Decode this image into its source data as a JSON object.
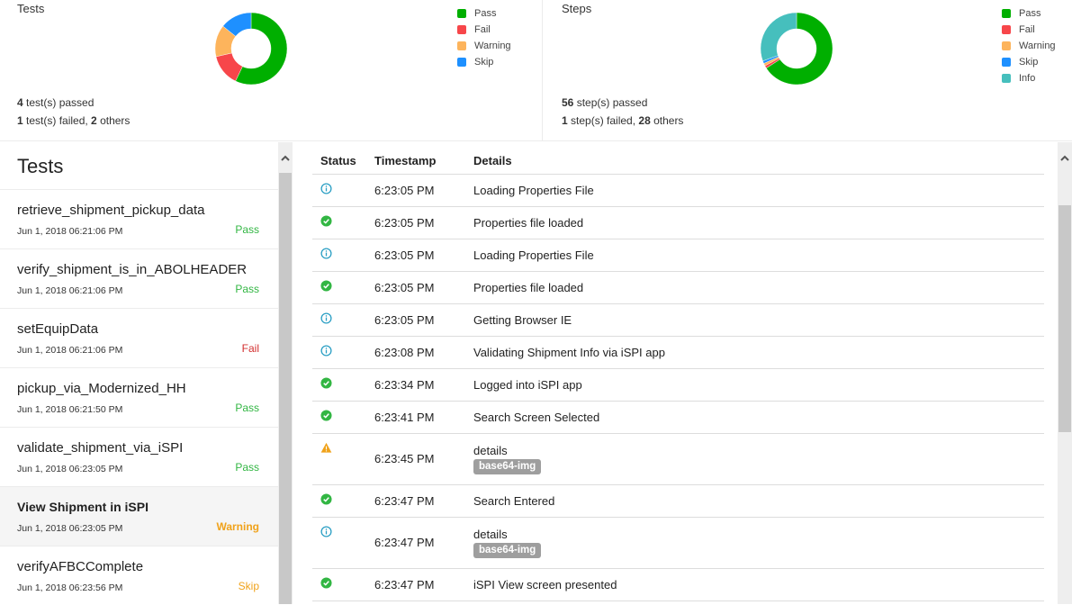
{
  "summary": {
    "tests": {
      "title": "Tests",
      "passed_count": "4",
      "passed_text": " test(s) passed",
      "failed_count": "1",
      "failed_text": " test(s) failed, ",
      "others_count": "2",
      "others_text": " others",
      "legend": [
        {
          "label": "Pass",
          "color": "#00af00"
        },
        {
          "label": "Fail",
          "color": "#f7464a"
        },
        {
          "label": "Warning",
          "color": "#fdb45c"
        },
        {
          "label": "Skip",
          "color": "#1e90ff"
        }
      ]
    },
    "steps": {
      "title": "Steps",
      "passed_count": "56",
      "passed_text": " step(s) passed",
      "failed_count": "1",
      "failed_text": " step(s) failed, ",
      "others_count": "28",
      "others_text": " others",
      "legend": [
        {
          "label": "Pass",
          "color": "#00af00"
        },
        {
          "label": "Fail",
          "color": "#f7464a"
        },
        {
          "label": "Warning",
          "color": "#fdb45c"
        },
        {
          "label": "Skip",
          "color": "#1e90ff"
        },
        {
          "label": "Info",
          "color": "#46bfbd"
        }
      ]
    }
  },
  "chart_data": [
    {
      "type": "pie",
      "title": "Tests",
      "categories": [
        "Pass",
        "Fail",
        "Warning",
        "Skip"
      ],
      "values": [
        4,
        1,
        1,
        1
      ],
      "colors": [
        "#00af00",
        "#f7464a",
        "#fdb45c",
        "#1e90ff"
      ],
      "donut": true,
      "legend_position": "right"
    },
    {
      "type": "pie",
      "title": "Steps",
      "categories": [
        "Pass",
        "Fail",
        "Warning",
        "Skip",
        "Info"
      ],
      "values": [
        56,
        1,
        1,
        1,
        26
      ],
      "colors": [
        "#00af00",
        "#f7464a",
        "#fdb45c",
        "#1e90ff",
        "#46bfbd"
      ],
      "donut": true,
      "legend_position": "right"
    }
  ],
  "test_pane": {
    "title": "Tests",
    "items": [
      {
        "name": "retrieve_shipment_pickup_data",
        "time": "Jun 1, 2018 06:21:06 PM",
        "status": "Pass",
        "status_class": "pass"
      },
      {
        "name": "verify_shipment_is_in_ABOLHEADER",
        "time": "Jun 1, 2018 06:21:06 PM",
        "status": "Pass",
        "status_class": "pass"
      },
      {
        "name": "setEquipData",
        "time": "Jun 1, 2018 06:21:06 PM",
        "status": "Fail",
        "status_class": "fail"
      },
      {
        "name": "pickup_via_Modernized_HH",
        "time": "Jun 1, 2018 06:21:50 PM",
        "status": "Pass",
        "status_class": "pass"
      },
      {
        "name": "validate_shipment_via_iSPI",
        "time": "Jun 1, 2018 06:23:05 PM",
        "status": "Pass",
        "status_class": "pass"
      },
      {
        "name": "View Shipment in iSPI",
        "time": "Jun 1, 2018 06:23:05 PM",
        "status": "Warning",
        "status_class": "warning",
        "active": true
      },
      {
        "name": "verifyAFBCComplete",
        "time": "Jun 1, 2018 06:23:56 PM",
        "status": "Skip",
        "status_class": "skip"
      }
    ]
  },
  "steps_table": {
    "headers": {
      "status": "Status",
      "timestamp": "Timestamp",
      "details": "Details"
    },
    "rows": [
      {
        "status": "info",
        "timestamp": "6:23:05 PM",
        "details": "Loading Properties File"
      },
      {
        "status": "pass",
        "timestamp": "6:23:05 PM",
        "details": "Properties file loaded"
      },
      {
        "status": "info",
        "timestamp": "6:23:05 PM",
        "details": "Loading Properties File"
      },
      {
        "status": "pass",
        "timestamp": "6:23:05 PM",
        "details": "Properties file loaded"
      },
      {
        "status": "info",
        "timestamp": "6:23:05 PM",
        "details": "Getting Browser IE"
      },
      {
        "status": "info",
        "timestamp": "6:23:08 PM",
        "details": "Validating Shipment Info via iSPI app"
      },
      {
        "status": "pass",
        "timestamp": "6:23:34 PM",
        "details": "Logged into iSPI app"
      },
      {
        "status": "pass",
        "timestamp": "6:23:41 PM",
        "details": "Search Screen Selected"
      },
      {
        "status": "warning",
        "timestamp": "6:23:45 PM",
        "details": "details",
        "badge": "base64-img"
      },
      {
        "status": "pass",
        "timestamp": "6:23:47 PM",
        "details": "Search Entered"
      },
      {
        "status": "info",
        "timestamp": "6:23:47 PM",
        "details": "details",
        "badge": "base64-img"
      },
      {
        "status": "pass",
        "timestamp": "6:23:47 PM",
        "details": "iSPI View screen presented"
      }
    ]
  },
  "icons": {
    "info": "info-circle-icon",
    "pass": "check-circle-icon",
    "warning": "warning-triangle-icon",
    "scroll_up": "chevron-up-icon"
  },
  "colors": {
    "pass": "#32b643",
    "fail": "#d32f2f",
    "warning": "#f0a21a",
    "info": "#2b9fc4",
    "badge": "#9e9e9e"
  }
}
